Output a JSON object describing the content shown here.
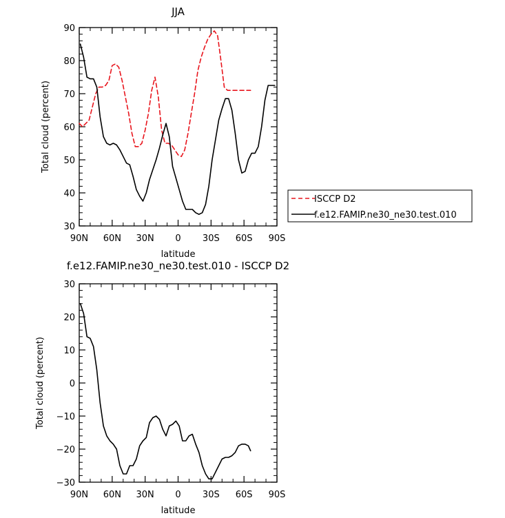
{
  "chart_data": [
    {
      "type": "line",
      "title": "JJA",
      "xlabel": "latitude",
      "ylabel": "Total cloud (percent)",
      "xlim": [
        90,
        -90
      ],
      "ylim": [
        30,
        90
      ],
      "x_ticks": [
        90,
        60,
        30,
        0,
        -30,
        -60,
        -90
      ],
      "x_tick_labels": [
        "90N",
        "60N",
        "30N",
        "0",
        "30S",
        "60S",
        "90S"
      ],
      "y_ticks": [
        30,
        40,
        50,
        60,
        70,
        80,
        90
      ],
      "y_tick_labels": [
        "30",
        "40",
        "50",
        "60",
        "70",
        "80",
        "90"
      ],
      "legend_position": "right",
      "series": [
        {
          "name": "ISCCP D2",
          "color": "#e8141c",
          "style": "dashed",
          "x": [
            90,
            87,
            84,
            81,
            78,
            75,
            72,
            69,
            66,
            63,
            60,
            57,
            54,
            51,
            48,
            45,
            42,
            39,
            36,
            33,
            30,
            27,
            24,
            21,
            18,
            15,
            12,
            9,
            6,
            3,
            0,
            -3,
            -6,
            -9,
            -12,
            -15,
            -18,
            -21,
            -24,
            -27,
            -30,
            -33,
            -36,
            -39,
            -42,
            -45,
            -48,
            -51,
            -54,
            -57,
            -60,
            -63,
            -66
          ],
          "values": [
            61,
            60,
            61,
            62,
            66,
            70,
            72,
            72,
            72.5,
            74,
            78.5,
            79,
            78,
            74,
            69,
            64,
            58,
            54,
            54,
            55,
            59,
            64,
            71,
            75,
            69,
            59,
            55,
            55,
            54.5,
            53,
            51.5,
            51,
            53,
            58,
            64,
            70,
            77,
            81,
            84,
            86.5,
            88,
            89,
            87.5,
            80,
            72,
            71,
            71,
            71,
            71,
            71,
            71,
            71,
            71
          ]
        },
        {
          "name": "f.e12.FAMIP.ne30_ne30.test.010",
          "color": "#000000",
          "style": "solid",
          "x": [
            89,
            86,
            83,
            80,
            77,
            74,
            71,
            68,
            65,
            62,
            59,
            56,
            53,
            50,
            47,
            44,
            41,
            38,
            35,
            32,
            29,
            26,
            23,
            20,
            17,
            14,
            11,
            8,
            5,
            2,
            -1,
            -4,
            -7,
            -10,
            -13,
            -16,
            -19,
            -22,
            -25,
            -28,
            -31,
            -34,
            -37,
            -40,
            -43,
            -46,
            -49,
            -52,
            -55,
            -58,
            -61,
            -64,
            -67,
            -70,
            -73,
            -76,
            -79,
            -82,
            -85,
            -88
          ],
          "values": [
            85,
            81,
            75,
            74.5,
            74.5,
            72,
            63,
            57,
            55,
            54.5,
            55,
            54.5,
            53,
            51,
            49,
            48.5,
            45,
            41,
            39,
            37.5,
            40,
            44,
            47,
            50,
            53.5,
            57.5,
            61,
            57,
            48,
            44.5,
            41,
            37.5,
            35,
            35,
            35,
            34,
            33.5,
            34,
            36.5,
            42,
            50,
            56,
            62,
            65.5,
            68.5,
            68.5,
            65,
            58,
            50,
            46,
            46.5,
            50,
            52,
            52,
            54,
            60,
            68,
            72.5,
            72.5,
            72.5
          ]
        }
      ]
    },
    {
      "type": "line",
      "title": "f.e12.FAMIP.ne30_ne30.test.010 - ISCCP D2",
      "xlabel": "latitude",
      "ylabel": "Total cloud (percent)",
      "xlim": [
        90,
        -90
      ],
      "ylim": [
        -30,
        30
      ],
      "x_ticks": [
        90,
        60,
        30,
        0,
        -30,
        -60,
        -90
      ],
      "x_tick_labels": [
        "90N",
        "60N",
        "30N",
        "0",
        "30S",
        "60S",
        "90S"
      ],
      "y_ticks": [
        -30,
        -20,
        -10,
        0,
        10,
        20,
        30
      ],
      "y_tick_labels": [
        "−30",
        "−20",
        "−10",
        "0",
        "10",
        "20",
        "30"
      ],
      "series": [
        {
          "color": "#000000",
          "style": "solid",
          "x": [
            89,
            86,
            83,
            80,
            77,
            74,
            71,
            68,
            65,
            62,
            59,
            56,
            53,
            50,
            47,
            44,
            41,
            38,
            35,
            32,
            29,
            26,
            23,
            20,
            17,
            14,
            11,
            8,
            5,
            2,
            -1,
            -4,
            -7,
            -10,
            -13,
            -16,
            -19,
            -22,
            -25,
            -28,
            -31,
            -34,
            -37,
            -40,
            -43,
            -46,
            -49,
            -52,
            -55,
            -58,
            -61,
            -64,
            -66
          ],
          "values": [
            24,
            21,
            14,
            13.5,
            11,
            4,
            -6,
            -13,
            -16,
            -17.5,
            -18.5,
            -20,
            -25,
            -27.5,
            -27.5,
            -25,
            -25,
            -23,
            -19,
            -17.5,
            -16.5,
            -12,
            -10.5,
            -10,
            -11,
            -14,
            -16,
            -13,
            -12.5,
            -11.5,
            -13,
            -17.5,
            -17.5,
            -16,
            -15.5,
            -18.5,
            -21,
            -25,
            -27.5,
            -29,
            -29,
            -27,
            -25,
            -23,
            -22.5,
            -22.5,
            -22,
            -21,
            -19,
            -18.5,
            -18.5,
            -19,
            -20.5
          ]
        }
      ]
    }
  ]
}
